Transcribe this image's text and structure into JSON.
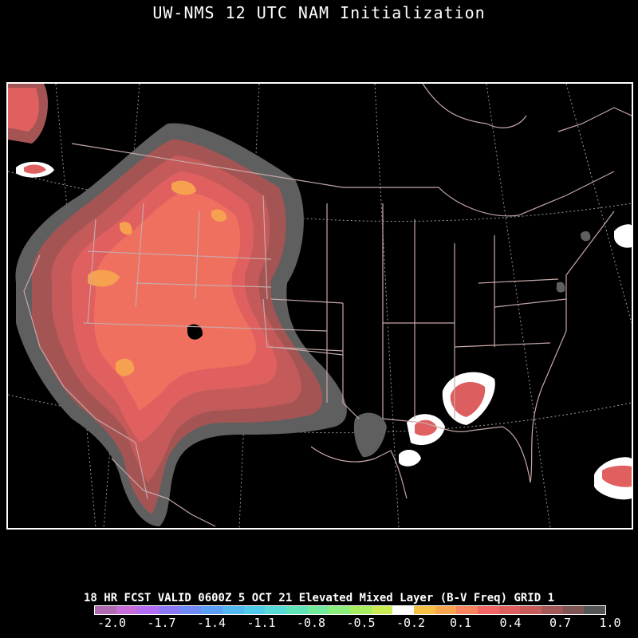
{
  "title": "UW-NMS 12 UTC NAM Initialization",
  "caption": "18 HR FCST VALID 0600Z  5 OCT 21 Elevated Mixed Layer (B-V Freq) GRID 1",
  "colorbar": {
    "colors": [
      "#b06ab0",
      "#c66bd8",
      "#b36cf4",
      "#8a78f8",
      "#6f8af8",
      "#5a9ff5",
      "#52b6f1",
      "#4fcaeb",
      "#56dad6",
      "#5fe4b8",
      "#71ea99",
      "#8aee7b",
      "#a6ee60",
      "#c8ec52",
      "#ffffff",
      "#f5c044",
      "#f8a550",
      "#f7845c",
      "#f36464",
      "#dc5e5e",
      "#c85a5a",
      "#a25757",
      "#7d5555",
      "#555555"
    ],
    "ticks": [
      "-2.0",
      "-1.7",
      "-1.4",
      "-1.1",
      "-0.8",
      "-0.5",
      "-0.2",
      "0.1",
      "0.4",
      "0.7",
      "1.0"
    ]
  },
  "map": {
    "fill_colors": {
      "grey": "#5f5f5f",
      "dark_red": "#a55454",
      "mid_red": "#c55a5a",
      "red": "#e06060",
      "salmon": "#f07060",
      "orange": "#f5a150"
    },
    "boundary_color": "#c8a8a8",
    "graticule_color": "#9a9a9a"
  }
}
